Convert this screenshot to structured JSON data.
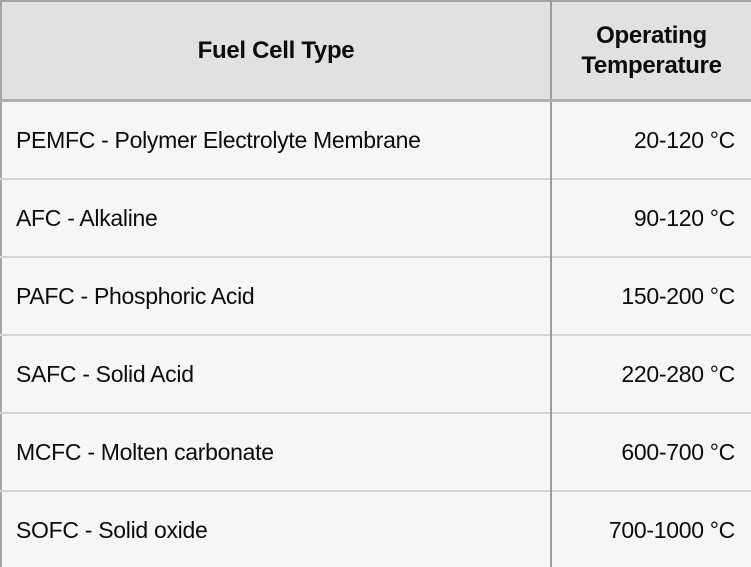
{
  "colors": {
    "header_background": "#e1e1e1",
    "body_background": "#f6f6f6",
    "outer_border": "#a3a3a3",
    "column_divider": "#9c9c9c",
    "row_divider": "#d4d4d4",
    "text": "#0c0c0c"
  },
  "table": {
    "headers": {
      "fuel_cell_type": "Fuel Cell Type",
      "operating_temperature": "Operating Temperature"
    },
    "rows": [
      {
        "type": "PEMFC - Polymer Electrolyte Membrane",
        "temp": "20-120 °C"
      },
      {
        "type": "AFC - Alkaline",
        "temp": "90-120 °C"
      },
      {
        "type": "PAFC - Phosphoric Acid",
        "temp": "150-200 °C"
      },
      {
        "type": "SAFC - Solid Acid",
        "temp": "220-280 °C"
      },
      {
        "type": "MCFC - Molten carbonate",
        "temp": "600-700 °C"
      },
      {
        "type": "SOFC - Solid oxide",
        "temp": "700-1000 °C"
      }
    ]
  },
  "chart_data": {
    "type": "table",
    "title": "",
    "columns": [
      "Fuel Cell Type",
      "Operating Temperature"
    ],
    "rows": [
      [
        "PEMFC - Polymer Electrolyte Membrane",
        "20-120 °C"
      ],
      [
        "AFC - Alkaline",
        "90-120 °C"
      ],
      [
        "PAFC - Phosphoric Acid",
        "150-200 °C"
      ],
      [
        "SAFC - Solid Acid",
        "220-280 °C"
      ],
      [
        "MCFC - Molten carbonate",
        "600-700 °C"
      ],
      [
        "SOFC - Solid oxide",
        "700-1000 °C"
      ]
    ],
    "temperature_ranges_c": [
      {
        "name": "PEMFC",
        "min": 20,
        "max": 120
      },
      {
        "name": "AFC",
        "min": 90,
        "max": 120
      },
      {
        "name": "PAFC",
        "min": 150,
        "max": 200
      },
      {
        "name": "SAFC",
        "min": 220,
        "max": 280
      },
      {
        "name": "MCFC",
        "min": 600,
        "max": 700
      },
      {
        "name": "SOFC",
        "min": 700,
        "max": 1000
      }
    ]
  }
}
